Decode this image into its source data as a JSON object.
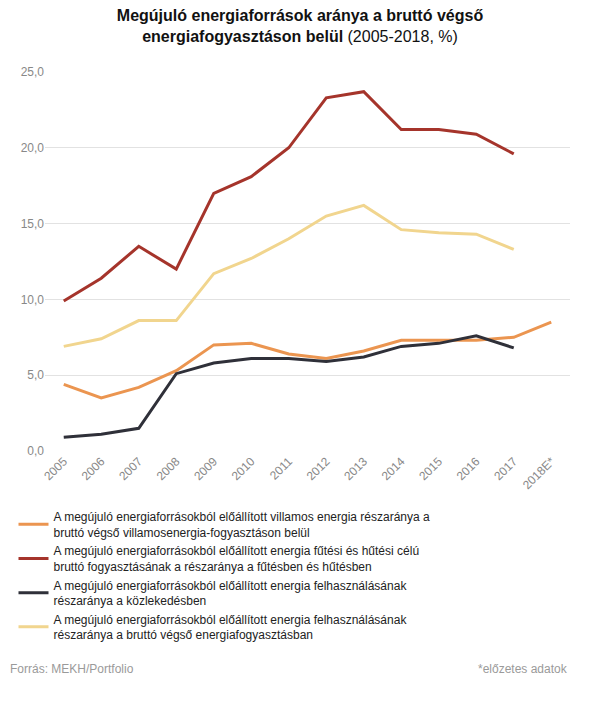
{
  "chart_data": {
    "type": "line",
    "title": "Megújuló energiaforrások aránya a bruttó végső energiafogyasztáson belül",
    "subtitle": "(2005-2018, %)",
    "categories": [
      "2005",
      "2006",
      "2007",
      "2008",
      "2009",
      "2010",
      "2011",
      "2012",
      "2013",
      "2014",
      "2015",
      "2016",
      "2017",
      "2018E*"
    ],
    "series": [
      {
        "name": "A megújuló energiaforrásokból előállított villamos energia részaránya a bruttó végső villamosenergia-fogyasztáson belül",
        "color": "#eb9550",
        "values": [
          4.4,
          3.5,
          4.2,
          5.3,
          7.0,
          7.1,
          6.4,
          6.1,
          6.6,
          7.3,
          7.3,
          7.3,
          7.5,
          8.5
        ]
      },
      {
        "name": "A megújuló energiaforrásokból előállított energia fűtési és hűtési célú bruttó fogyasztásának a részaránya a fűtésben és hűtésben",
        "color": "#a5342b",
        "values": [
          9.9,
          11.4,
          13.5,
          12.0,
          17.0,
          18.1,
          20.0,
          23.3,
          23.7,
          21.2,
          21.2,
          20.9,
          19.6,
          null
        ]
      },
      {
        "name": "A megújuló energiaforrásokból előállított energia felhasználásának részaránya a közlekedésben",
        "color": "#2f3039",
        "values": [
          0.9,
          1.1,
          1.5,
          5.1,
          5.8,
          6.1,
          6.1,
          5.9,
          6.2,
          6.9,
          7.1,
          7.6,
          6.8,
          null
        ]
      },
      {
        "name": "A megújuló energiaforrásokból előállított energia felhasználásának részaránya a bruttó végső energiafogyasztásban",
        "color": "#f1d58e",
        "values": [
          6.9,
          7.4,
          8.6,
          8.6,
          11.7,
          12.7,
          14.0,
          15.5,
          16.2,
          14.6,
          14.4,
          14.3,
          13.3,
          null
        ]
      }
    ],
    "ylim": [
      0,
      25
    ],
    "yticks": [
      {
        "value": 0,
        "label": "0,0"
      },
      {
        "value": 5,
        "label": "5,0"
      },
      {
        "value": 10,
        "label": "10,0"
      },
      {
        "value": 15,
        "label": "15,0"
      },
      {
        "value": 20,
        "label": "20,0"
      },
      {
        "value": 25,
        "label": "25,0"
      }
    ],
    "grid": true,
    "legend": "bottom",
    "line_style": "solid",
    "annotations": [
      "Forrás: MEKH/Portfolio",
      "*előzetes adatok"
    ]
  }
}
